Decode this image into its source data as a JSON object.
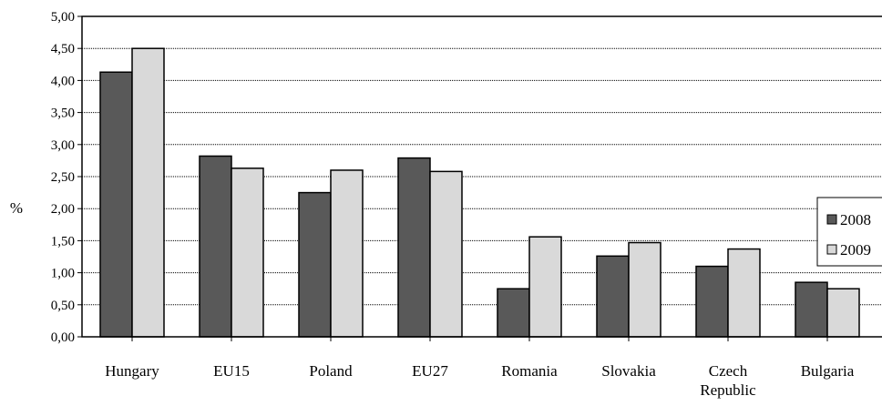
{
  "chart_data": {
    "type": "bar",
    "title": "",
    "xlabel": "",
    "ylabel": "%",
    "ylim": [
      0,
      5
    ],
    "yticks": [
      "0,00",
      "0,50",
      "1,00",
      "1,50",
      "2,00",
      "2,50",
      "3,00",
      "3,50",
      "4,00",
      "4,50",
      "5,00"
    ],
    "grid": true,
    "legend_position": "right",
    "categories": [
      "Hungary",
      "EU15",
      "Poland",
      "EU27",
      "Romania",
      "Slovakia",
      "Czech Republic",
      "Bulgaria"
    ],
    "series": [
      {
        "name": "2008",
        "color": "#595959",
        "values": [
          4.13,
          2.82,
          2.25,
          2.79,
          0.75,
          1.26,
          1.1,
          0.85
        ]
      },
      {
        "name": "2009",
        "color": "#d9d9d9",
        "values": [
          4.5,
          2.63,
          2.6,
          2.58,
          1.56,
          1.47,
          1.37,
          0.75
        ]
      }
    ]
  }
}
